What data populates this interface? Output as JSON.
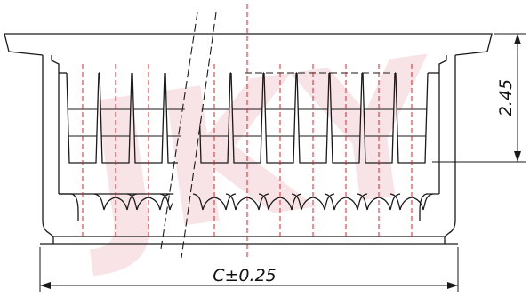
{
  "drawing": {
    "width_dimension": "C±0.25",
    "height_dimension": "2.45"
  },
  "colors": {
    "outline": "#1a1a1a",
    "centerline": "#e0202a",
    "watermark": "#f3cfd2"
  },
  "watermark_text": "JKY"
}
